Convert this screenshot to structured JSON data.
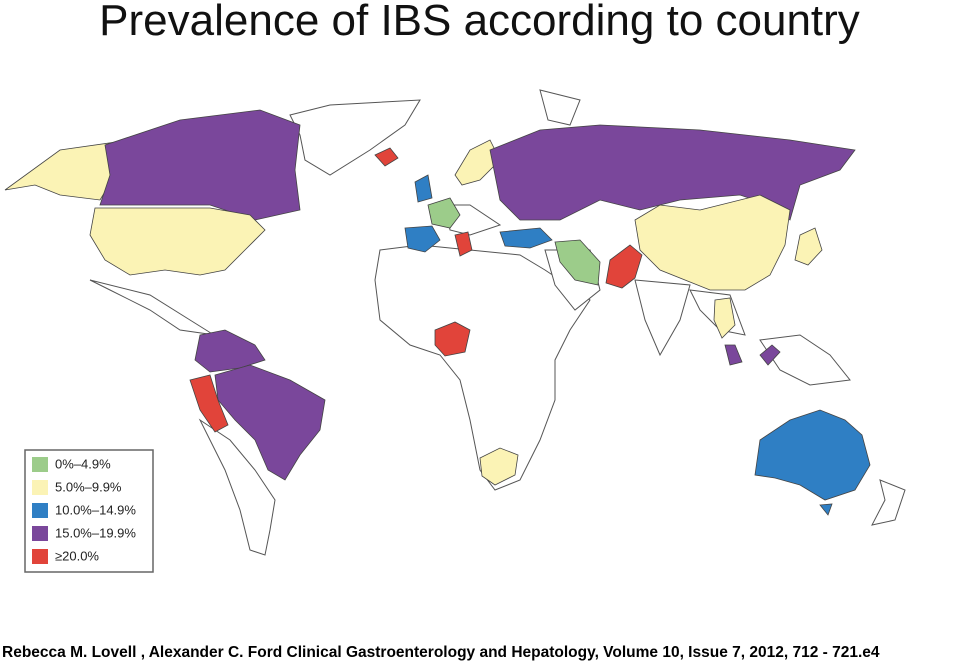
{
  "title": "Prevalence of IBS according to country",
  "legend": [
    {
      "label": "0%–4.9%",
      "color": "#9ccc8a"
    },
    {
      "label": "5.0%–9.9%",
      "color": "#fbf3b5"
    },
    {
      "label": "10.0%–14.9%",
      "color": "#2f7fc4"
    },
    {
      "label": "15.0%–19.9%",
      "color": "#7a479b"
    },
    {
      "label": "≥20.0%",
      "color": "#e1443a"
    }
  ],
  "citation": "Rebecca M.  Lovell , Alexander C.  Ford Clinical Gastroenterology and Hepatology, Volume 10, Issue 7, 2012, 712 - 721.e4"
}
